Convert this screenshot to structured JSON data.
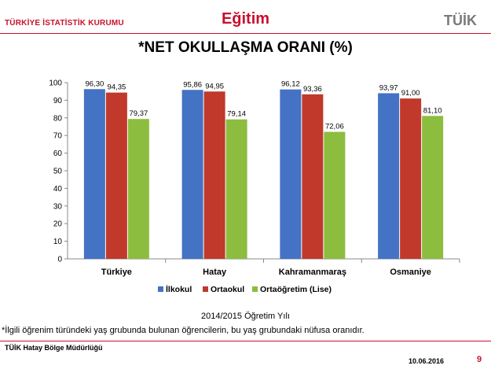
{
  "header": {
    "org_name": "TÜRKİYE İSTATİSTİK KURUMU",
    "section": "Eğitim",
    "logo_text": "TÜİK"
  },
  "title": "*NET OKULLAŞMA ORANI (%)",
  "chart_data": {
    "type": "bar",
    "categories": [
      "Türkiye",
      "Hatay",
      "Kahramanmaraş",
      "Osmaniye"
    ],
    "series": [
      {
        "name": "İlkokul",
        "color": "#4472c4",
        "values": [
          96.3,
          95.86,
          96.12,
          93.97
        ],
        "labels": [
          "96,30",
          "95,86",
          "96,12",
          "93,97"
        ]
      },
      {
        "name": "Ortaokul",
        "color": "#c0392b",
        "values": [
          94.35,
          94.95,
          93.36,
          91.0
        ],
        "labels": [
          "94,35",
          "94,95",
          "93,36",
          "91,00"
        ]
      },
      {
        "name": "Ortaöğretim (Lise)",
        "color": "#8cbd3f",
        "values": [
          79.37,
          79.14,
          72.06,
          81.1
        ],
        "labels": [
          "79,37",
          "79,14",
          "72,06",
          "81,10"
        ]
      }
    ],
    "ylim": [
      0,
      100
    ],
    "yticks": [
      0,
      10,
      20,
      30,
      40,
      50,
      60,
      70,
      80,
      90,
      100
    ],
    "legend": "bottom",
    "grid": false
  },
  "subtitle": "2014/2015 Öğretim Yılı",
  "footnote": "*İlgili öğrenim türündeki yaş grubunda bulunan öğrencilerin, bu yaş  grubundaki nüfusa oranıdır.",
  "footer": {
    "office": "TÜİK Hatay Bölge Müdürlüğü",
    "date": "10.06.2016",
    "page": "9"
  }
}
